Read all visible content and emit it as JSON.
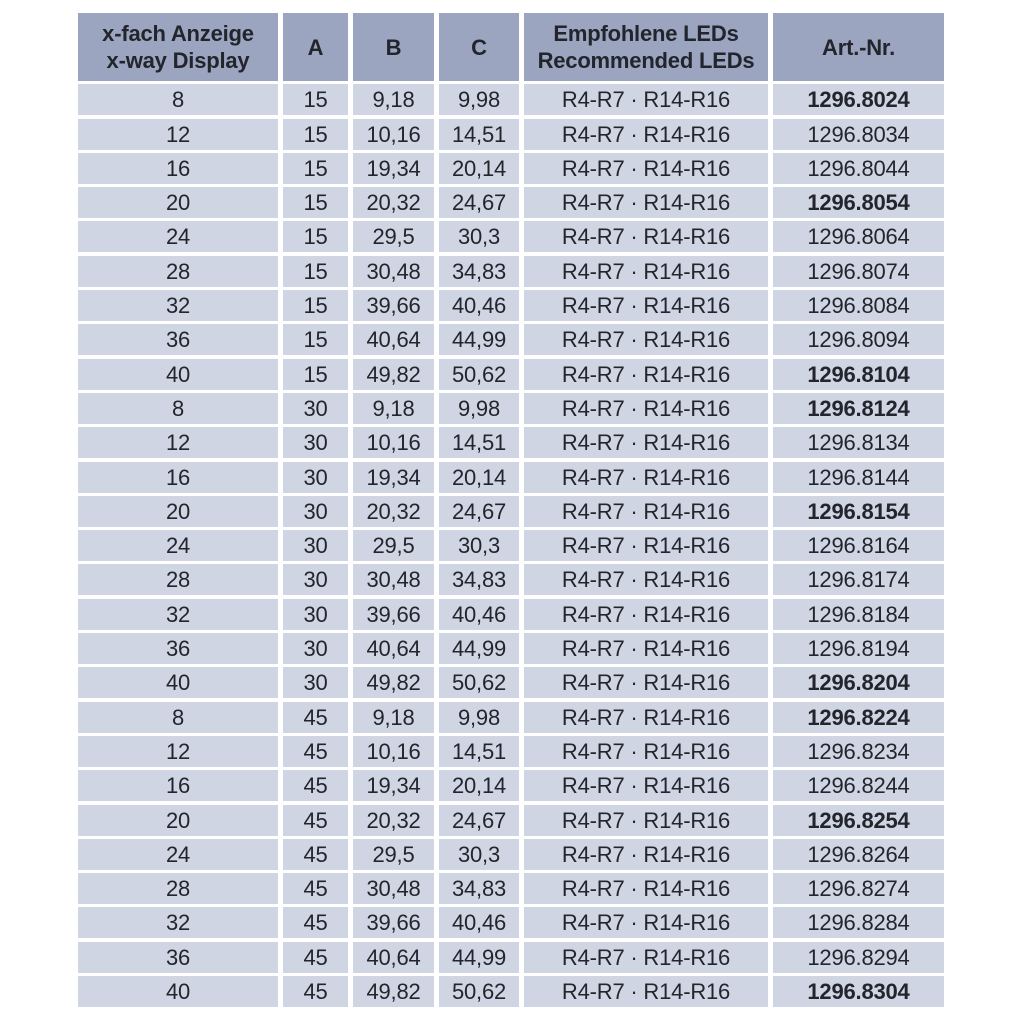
{
  "table": {
    "header": {
      "display_line1": "x-fach Anzeige",
      "display_line2": "x-way Display",
      "col_a": "A",
      "col_b": "B",
      "col_c": "C",
      "leds_line1": "Empfohlene LEDs",
      "leds_line2": "Recommended LEDs",
      "art": "Art.-Nr."
    },
    "rows": [
      {
        "x": "8",
        "a": "15",
        "b": "9,18",
        "c": "9,98",
        "leds": "R4-R7 · R14-R16",
        "art": "1296.8024",
        "bold": true
      },
      {
        "x": "12",
        "a": "15",
        "b": "10,16",
        "c": "14,51",
        "leds": "R4-R7 · R14-R16",
        "art": "1296.8034",
        "bold": false
      },
      {
        "x": "16",
        "a": "15",
        "b": "19,34",
        "c": "20,14",
        "leds": "R4-R7 · R14-R16",
        "art": "1296.8044",
        "bold": false
      },
      {
        "x": "20",
        "a": "15",
        "b": "20,32",
        "c": "24,67",
        "leds": "R4-R7 · R14-R16",
        "art": "1296.8054",
        "bold": true
      },
      {
        "x": "24",
        "a": "15",
        "b": "29,5",
        "c": "30,3",
        "leds": "R4-R7 · R14-R16",
        "art": "1296.8064",
        "bold": false
      },
      {
        "x": "28",
        "a": "15",
        "b": "30,48",
        "c": "34,83",
        "leds": "R4-R7 · R14-R16",
        "art": "1296.8074",
        "bold": false
      },
      {
        "x": "32",
        "a": "15",
        "b": "39,66",
        "c": "40,46",
        "leds": "R4-R7 · R14-R16",
        "art": "1296.8084",
        "bold": false
      },
      {
        "x": "36",
        "a": "15",
        "b": "40,64",
        "c": "44,99",
        "leds": "R4-R7 · R14-R16",
        "art": "1296.8094",
        "bold": false
      },
      {
        "x": "40",
        "a": "15",
        "b": "49,82",
        "c": "50,62",
        "leds": "R4-R7 · R14-R16",
        "art": "1296.8104",
        "bold": true
      },
      {
        "x": "8",
        "a": "30",
        "b": "9,18",
        "c": "9,98",
        "leds": "R4-R7 · R14-R16",
        "art": "1296.8124",
        "bold": true
      },
      {
        "x": "12",
        "a": "30",
        "b": "10,16",
        "c": "14,51",
        "leds": "R4-R7 · R14-R16",
        "art": "1296.8134",
        "bold": false
      },
      {
        "x": "16",
        "a": "30",
        "b": "19,34",
        "c": "20,14",
        "leds": "R4-R7 · R14-R16",
        "art": "1296.8144",
        "bold": false
      },
      {
        "x": "20",
        "a": "30",
        "b": "20,32",
        "c": "24,67",
        "leds": "R4-R7 · R14-R16",
        "art": "1296.8154",
        "bold": true
      },
      {
        "x": "24",
        "a": "30",
        "b": "29,5",
        "c": "30,3",
        "leds": "R4-R7 · R14-R16",
        "art": "1296.8164",
        "bold": false
      },
      {
        "x": "28",
        "a": "30",
        "b": "30,48",
        "c": "34,83",
        "leds": "R4-R7 · R14-R16",
        "art": "1296.8174",
        "bold": false
      },
      {
        "x": "32",
        "a": "30",
        "b": "39,66",
        "c": "40,46",
        "leds": "R4-R7 · R14-R16",
        "art": "1296.8184",
        "bold": false
      },
      {
        "x": "36",
        "a": "30",
        "b": "40,64",
        "c": "44,99",
        "leds": "R4-R7 · R14-R16",
        "art": "1296.8194",
        "bold": false
      },
      {
        "x": "40",
        "a": "30",
        "b": "49,82",
        "c": "50,62",
        "leds": "R4-R7 · R14-R16",
        "art": "1296.8204",
        "bold": true
      },
      {
        "x": "8",
        "a": "45",
        "b": "9,18",
        "c": "9,98",
        "leds": "R4-R7 · R14-R16",
        "art": "1296.8224",
        "bold": true
      },
      {
        "x": "12",
        "a": "45",
        "b": "10,16",
        "c": "14,51",
        "leds": "R4-R7 · R14-R16",
        "art": "1296.8234",
        "bold": false
      },
      {
        "x": "16",
        "a": "45",
        "b": "19,34",
        "c": "20,14",
        "leds": "R4-R7 · R14-R16",
        "art": "1296.8244",
        "bold": false
      },
      {
        "x": "20",
        "a": "45",
        "b": "20,32",
        "c": "24,67",
        "leds": "R4-R7 · R14-R16",
        "art": "1296.8254",
        "bold": true
      },
      {
        "x": "24",
        "a": "45",
        "b": "29,5",
        "c": "30,3",
        "leds": "R4-R7 · R14-R16",
        "art": "1296.8264",
        "bold": false
      },
      {
        "x": "28",
        "a": "45",
        "b": "30,48",
        "c": "34,83",
        "leds": "R4-R7 · R14-R16",
        "art": "1296.8274",
        "bold": false
      },
      {
        "x": "32",
        "a": "45",
        "b": "39,66",
        "c": "40,46",
        "leds": "R4-R7 · R14-R16",
        "art": "1296.8284",
        "bold": false
      },
      {
        "x": "36",
        "a": "45",
        "b": "40,64",
        "c": "44,99",
        "leds": "R4-R7 · R14-R16",
        "art": "1296.8294",
        "bold": false
      },
      {
        "x": "40",
        "a": "45",
        "b": "49,82",
        "c": "50,62",
        "leds": "R4-R7 · R14-R16",
        "art": "1296.8304",
        "bold": true
      }
    ],
    "colors": {
      "header_bg": "#9ba5c0",
      "row_bg": "#cfd5e2",
      "text": "#23252d",
      "gap": "#ffffff"
    }
  }
}
